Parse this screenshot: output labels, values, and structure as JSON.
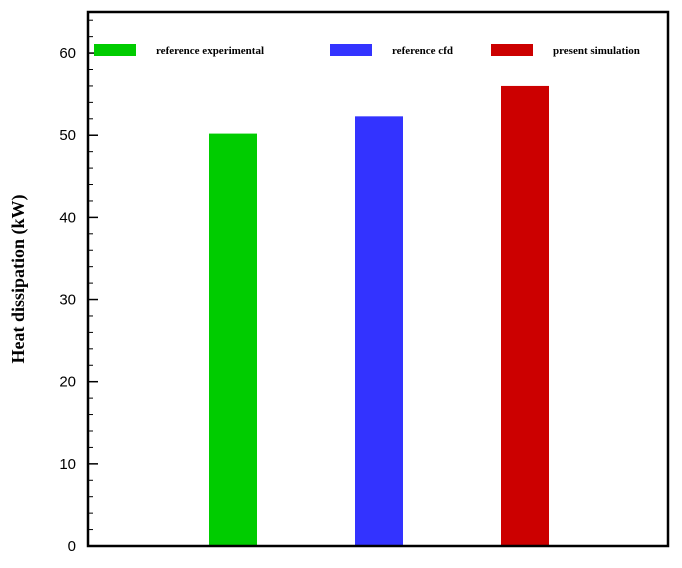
{
  "chart_data": {
    "type": "bar",
    "title": "",
    "xlabel": "",
    "ylabel": "Heat dissipation (kW)",
    "ylim": [
      0,
      65
    ],
    "yticks": [
      0,
      10,
      20,
      30,
      40,
      50,
      60
    ],
    "grid": false,
    "legend_position": "top",
    "series": [
      {
        "name": "reference experimental",
        "value": 50.2,
        "color": "#00cc00"
      },
      {
        "name": "reference cfd",
        "value": 52.3,
        "color": "#3333ff"
      },
      {
        "name": "present simulation",
        "value": 56.0,
        "color": "#cc0000"
      }
    ]
  }
}
